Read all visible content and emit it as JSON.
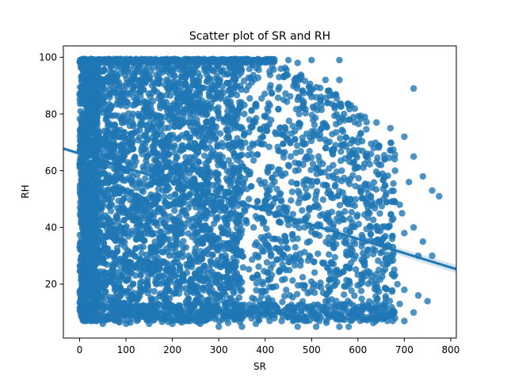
{
  "chart_data": {
    "type": "scatter",
    "title": "Scatter plot of SR and RH",
    "xlabel": "SR",
    "ylabel": "RH",
    "xlim": [
      -35,
      812
    ],
    "ylim": [
      1,
      104
    ],
    "xticks": [
      0,
      100,
      200,
      300,
      400,
      500,
      600,
      700,
      800
    ],
    "yticks": [
      20,
      40,
      60,
      80,
      100
    ],
    "grid": false,
    "legend": "none",
    "point_color": "#1f77b4",
    "point_opacity": 0.8,
    "regression_line": {
      "x": [
        -35,
        812
      ],
      "y": [
        67.8,
        25.3
      ],
      "color": "#1f77b4"
    },
    "series": [
      {
        "values": [
          [
            2,
            99
          ],
          [
            60,
            99
          ],
          [
            150,
            99
          ],
          [
            250,
            99
          ],
          [
            330,
            99
          ],
          [
            400,
            99
          ],
          [
            450,
            99
          ],
          [
            470,
            98
          ],
          [
            500,
            99
          ],
          [
            560,
            99
          ],
          [
            530,
            92
          ],
          [
            560,
            92
          ],
          [
            430,
            93
          ],
          [
            720,
            89
          ],
          [
            410,
            89
          ],
          [
            480,
            88
          ],
          [
            500,
            86
          ],
          [
            470,
            85
          ],
          [
            520,
            86
          ],
          [
            550,
            82
          ],
          [
            440,
            85
          ],
          [
            570,
            80
          ],
          [
            640,
            77
          ],
          [
            670,
            75
          ],
          [
            700,
            72
          ],
          [
            720,
            65
          ],
          [
            740,
            58
          ],
          [
            760,
            53
          ],
          [
            775,
            51
          ],
          [
            600,
            70
          ],
          [
            620,
            66
          ],
          [
            650,
            62
          ],
          [
            680,
            60
          ],
          [
            710,
            56
          ],
          [
            690,
            48
          ],
          [
            720,
            40
          ],
          [
            740,
            35
          ],
          [
            760,
            30
          ],
          [
            700,
            38
          ],
          [
            730,
            30
          ],
          [
            700,
            18
          ],
          [
            730,
            16
          ],
          [
            750,
            14
          ],
          [
            720,
            10
          ],
          [
            700,
            7
          ],
          [
            690,
            13
          ],
          [
            660,
            15
          ],
          [
            640,
            18
          ],
          [
            470,
            5
          ],
          [
            510,
            5
          ],
          [
            560,
            5
          ],
          [
            580,
            5
          ],
          [
            460,
            7
          ],
          [
            420,
            8
          ],
          [
            380,
            6
          ],
          [
            350,
            5
          ],
          [
            300,
            5
          ],
          [
            260,
            6
          ],
          [
            200,
            6
          ],
          [
            150,
            6
          ],
          [
            100,
            6
          ],
          [
            50,
            6
          ],
          [
            30,
            8
          ],
          [
            80,
            10
          ],
          [
            120,
            12
          ],
          [
            180,
            10
          ],
          [
            220,
            9
          ],
          [
            280,
            8
          ],
          [
            330,
            9
          ],
          [
            400,
            10
          ],
          [
            450,
            12
          ],
          [
            500,
            11
          ],
          [
            550,
            10
          ],
          [
            600,
            9
          ],
          [
            630,
            11
          ],
          [
            660,
            9
          ],
          [
            680,
            8
          ],
          [
            5,
            20
          ],
          [
            10,
            30
          ],
          [
            15,
            40
          ],
          [
            20,
            50
          ],
          [
            25,
            60
          ],
          [
            30,
            70
          ],
          [
            35,
            80
          ],
          [
            40,
            90
          ],
          [
            45,
            95
          ],
          [
            8,
            15
          ],
          [
            12,
            25
          ],
          [
            18,
            35
          ],
          [
            22,
            45
          ],
          [
            28,
            55
          ],
          [
            32,
            65
          ],
          [
            38,
            75
          ],
          [
            42,
            85
          ],
          [
            48,
            92
          ],
          [
            55,
            50
          ],
          [
            65,
            40
          ],
          [
            75,
            30
          ],
          [
            85,
            20
          ],
          [
            95,
            60
          ],
          [
            105,
            70
          ],
          [
            115,
            80
          ],
          [
            125,
            90
          ],
          [
            135,
            50
          ],
          [
            145,
            40
          ],
          [
            155,
            30
          ],
          [
            165,
            20
          ],
          [
            175,
            60
          ],
          [
            185,
            70
          ],
          [
            195,
            80
          ],
          [
            205,
            90
          ],
          [
            215,
            50
          ],
          [
            225,
            40
          ],
          [
            235,
            30
          ],
          [
            245,
            20
          ],
          [
            255,
            60
          ],
          [
            265,
            70
          ],
          [
            275,
            80
          ],
          [
            285,
            90
          ],
          [
            295,
            50
          ],
          [
            305,
            40
          ],
          [
            315,
            30
          ],
          [
            325,
            20
          ],
          [
            335,
            60
          ],
          [
            345,
            70
          ],
          [
            355,
            80
          ],
          [
            365,
            50
          ],
          [
            375,
            40
          ],
          [
            385,
            30
          ],
          [
            395,
            20
          ],
          [
            405,
            60
          ],
          [
            415,
            55
          ],
          [
            425,
            45
          ],
          [
            435,
            35
          ],
          [
            445,
            25
          ],
          [
            455,
            65
          ],
          [
            465,
            60
          ],
          [
            475,
            50
          ],
          [
            485,
            40
          ],
          [
            495,
            30
          ],
          [
            505,
            20
          ],
          [
            515,
            65
          ],
          [
            525,
            55
          ],
          [
            535,
            45
          ],
          [
            545,
            35
          ],
          [
            555,
            25
          ],
          [
            565,
            60
          ],
          [
            575,
            50
          ],
          [
            585,
            40
          ],
          [
            595,
            30
          ],
          [
            605,
            20
          ],
          [
            615,
            55
          ],
          [
            625,
            45
          ],
          [
            635,
            35
          ],
          [
            645,
            25
          ],
          [
            655,
            50
          ],
          [
            665,
            40
          ],
          [
            675,
            30
          ],
          [
            685,
            20
          ],
          [
            695,
            45
          ]
        ]
      }
    ]
  }
}
